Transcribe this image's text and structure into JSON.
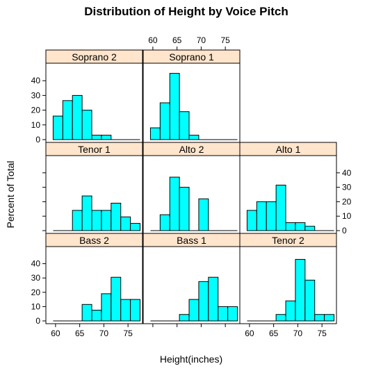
{
  "chart_data": {
    "type": "bar",
    "title": "Distribution of Height by Voice Pitch",
    "xlabel": "Height(inches)",
    "ylabel": "Percent of Total",
    "xlim": [
      58,
      78
    ],
    "ylim": [
      0,
      50
    ],
    "x_ticks": [
      60,
      65,
      70,
      75
    ],
    "y_ticks": [
      0,
      10,
      20,
      30,
      40
    ],
    "strip_color": "#ffe5cc",
    "bar_color": "#00ffff",
    "panels": [
      {
        "name": "Soprano 2",
        "bins": [
          {
            "x0": 59.5,
            "x1": 61.5,
            "pct": 16.0
          },
          {
            "x0": 61.5,
            "x1": 63.5,
            "pct": 26.5
          },
          {
            "x0": 63.5,
            "x1": 65.5,
            "pct": 30.0
          },
          {
            "x0": 65.5,
            "x1": 67.5,
            "pct": 20.0
          },
          {
            "x0": 67.5,
            "x1": 69.5,
            "pct": 3.0
          },
          {
            "x0": 69.5,
            "x1": 71.5,
            "pct": 3.0
          }
        ]
      },
      {
        "name": "Soprano 1",
        "bins": [
          {
            "x0": 59.5,
            "x1": 61.5,
            "pct": 8.0
          },
          {
            "x0": 61.5,
            "x1": 63.5,
            "pct": 25.0
          },
          {
            "x0": 63.5,
            "x1": 65.5,
            "pct": 45.0
          },
          {
            "x0": 65.5,
            "x1": 67.5,
            "pct": 19.0
          },
          {
            "x0": 67.5,
            "x1": 69.5,
            "pct": 3.0
          }
        ]
      },
      {
        "name": "Tenor 1",
        "bins": [
          {
            "x0": 63.5,
            "x1": 65.5,
            "pct": 14.0
          },
          {
            "x0": 65.5,
            "x1": 67.5,
            "pct": 24.0
          },
          {
            "x0": 67.5,
            "x1": 69.5,
            "pct": 14.0
          },
          {
            "x0": 69.5,
            "x1": 71.5,
            "pct": 14.0
          },
          {
            "x0": 71.5,
            "x1": 73.5,
            "pct": 19.0
          },
          {
            "x0": 73.5,
            "x1": 75.5,
            "pct": 9.5
          },
          {
            "x0": 75.5,
            "x1": 77.5,
            "pct": 5.0
          }
        ]
      },
      {
        "name": "Alto 2",
        "bins": [
          {
            "x0": 61.5,
            "x1": 63.5,
            "pct": 11.0
          },
          {
            "x0": 63.5,
            "x1": 65.5,
            "pct": 37.0
          },
          {
            "x0": 65.5,
            "x1": 67.5,
            "pct": 30.0
          },
          {
            "x0": 69.5,
            "x1": 71.5,
            "pct": 22.0
          }
        ]
      },
      {
        "name": "Alto 1",
        "bins": [
          {
            "x0": 59.5,
            "x1": 61.5,
            "pct": 14.0
          },
          {
            "x0": 61.5,
            "x1": 63.5,
            "pct": 20.0
          },
          {
            "x0": 63.5,
            "x1": 65.5,
            "pct": 20.0
          },
          {
            "x0": 65.5,
            "x1": 67.5,
            "pct": 31.5
          },
          {
            "x0": 67.5,
            "x1": 69.5,
            "pct": 5.5
          },
          {
            "x0": 69.5,
            "x1": 71.5,
            "pct": 5.5
          },
          {
            "x0": 71.5,
            "x1": 73.5,
            "pct": 3.0
          }
        ]
      },
      {
        "name": "Bass 2",
        "bins": [
          {
            "x0": 65.5,
            "x1": 67.5,
            "pct": 11.5
          },
          {
            "x0": 67.5,
            "x1": 69.5,
            "pct": 7.5
          },
          {
            "x0": 69.5,
            "x1": 71.5,
            "pct": 19.0
          },
          {
            "x0": 71.5,
            "x1": 73.5,
            "pct": 30.5
          },
          {
            "x0": 73.5,
            "x1": 75.5,
            "pct": 15.0
          },
          {
            "x0": 75.5,
            "x1": 77.5,
            "pct": 15.0
          }
        ]
      },
      {
        "name": "Bass 1",
        "bins": [
          {
            "x0": 65.5,
            "x1": 67.5,
            "pct": 4.5
          },
          {
            "x0": 67.5,
            "x1": 69.5,
            "pct": 15.0
          },
          {
            "x0": 69.5,
            "x1": 71.5,
            "pct": 27.5
          },
          {
            "x0": 71.5,
            "x1": 73.5,
            "pct": 30.5
          },
          {
            "x0": 73.5,
            "x1": 75.5,
            "pct": 10.0
          },
          {
            "x0": 75.5,
            "x1": 77.5,
            "pct": 10.0
          }
        ]
      },
      {
        "name": "Tenor 2",
        "bins": [
          {
            "x0": 65.5,
            "x1": 67.5,
            "pct": 4.5
          },
          {
            "x0": 67.5,
            "x1": 69.5,
            "pct": 14.0
          },
          {
            "x0": 69.5,
            "x1": 71.5,
            "pct": 43.0
          },
          {
            "x0": 71.5,
            "x1": 73.5,
            "pct": 28.5
          },
          {
            "x0": 73.5,
            "x1": 75.5,
            "pct": 4.5
          },
          {
            "x0": 75.5,
            "x1": 77.5,
            "pct": 4.5
          }
        ]
      }
    ]
  }
}
